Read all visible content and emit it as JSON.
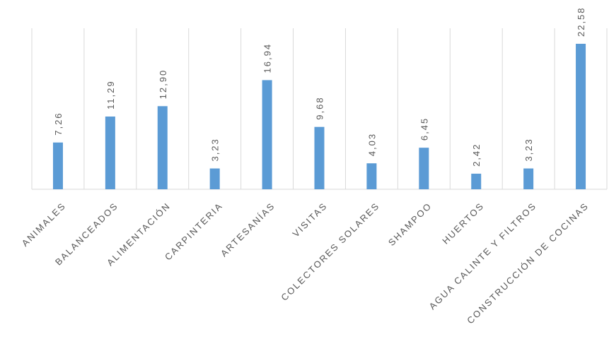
{
  "chart_data": {
    "type": "bar",
    "categories": [
      "ANIMALES",
      "BALANCEADOS",
      "ALIMENTACIÓN",
      "CARPINTERIA",
      "ARTESANÍAS",
      "VISITAS",
      "COLECTORES SOLARES",
      "SHAMPOO",
      "HUERTOS",
      "AGUA CALINTE Y FILTROS",
      "CONSTRUCCIÓN DE COCINAS"
    ],
    "values": [
      7.26,
      11.29,
      12.9,
      3.23,
      16.94,
      9.68,
      4.03,
      6.45,
      2.42,
      3.23,
      22.58
    ],
    "value_labels": [
      "7,26",
      "11,29",
      "12,90",
      "3,23",
      "16,94",
      "9,68",
      "4,03",
      "6,45",
      "2,42",
      "3,23",
      "22,58"
    ],
    "color": "#5b9bd5"
  }
}
